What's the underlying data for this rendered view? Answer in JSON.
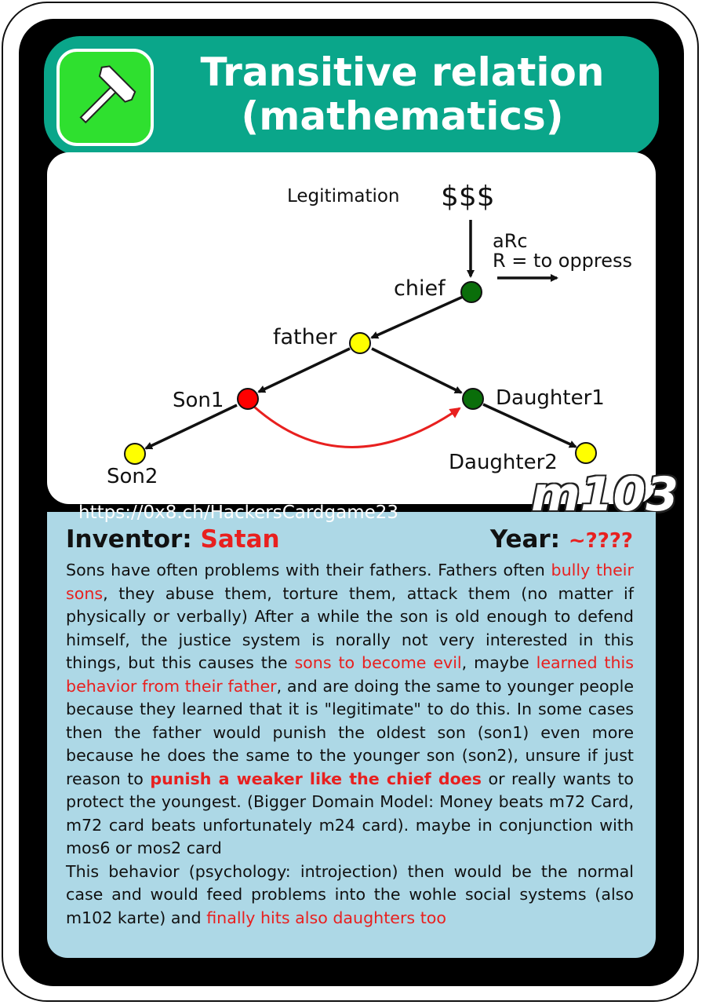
{
  "header": {
    "title_line1": "Transitive relation",
    "title_line2": "(mathematics)",
    "icon": "hammer-icon",
    "color": "#0aa68a"
  },
  "diagram": {
    "legitimation": "Legitimation",
    "money": "$$$",
    "arc": "aRc",
    "relation": "R = to oppress",
    "nodes": {
      "chief": "chief",
      "father": "father",
      "son1": "Son1",
      "son2": "Son2",
      "daughter1": "Daughter1",
      "daughter2": "Daughter2"
    },
    "colors": {
      "green": "#0a6e0a",
      "yellow": "#ffff00",
      "red": "#ff0000"
    }
  },
  "card_code": "m103",
  "url": "https://0x8.ch/HackersCardgame23",
  "inventor": {
    "label": "Inventor:",
    "value": "Satan"
  },
  "year": {
    "label": "Year:",
    "value": "~????"
  },
  "body": {
    "s1": "Sons have often problems with their fathers. Fathers often ",
    "r1": "bully their sons",
    "s2": ", they abuse them, torture them, attack them (no matter if physically or verbally) After a while the son is old enough to defend himself, the justice system is norally not very interested in this things, but this causes the ",
    "r2": "sons to become evil",
    "s3": ", maybe ",
    "r3": "learned this behavior from their father",
    "s4": ", and are doing the same to younger people because they learned that it is \"legitimate\" to do this. In some cases then the father would punish the oldest son (son1) even more because he does the same to the younger son (son2), unsure if just reason to ",
    "r4": "punish a weaker like the chief does",
    "s5": " or really wants to protect the youngest. (Bigger Domain Model: Money beats m72 Card, m72 card beats unfortunately m24 card). maybe in conjunction with mos6 or mos2 card",
    "s6": "This behavior (psychology: introjection) then would be the normal case and would feed problems into the wohle social systems (also m102 karte) and ",
    "r6": "finally hits also daughters too"
  }
}
